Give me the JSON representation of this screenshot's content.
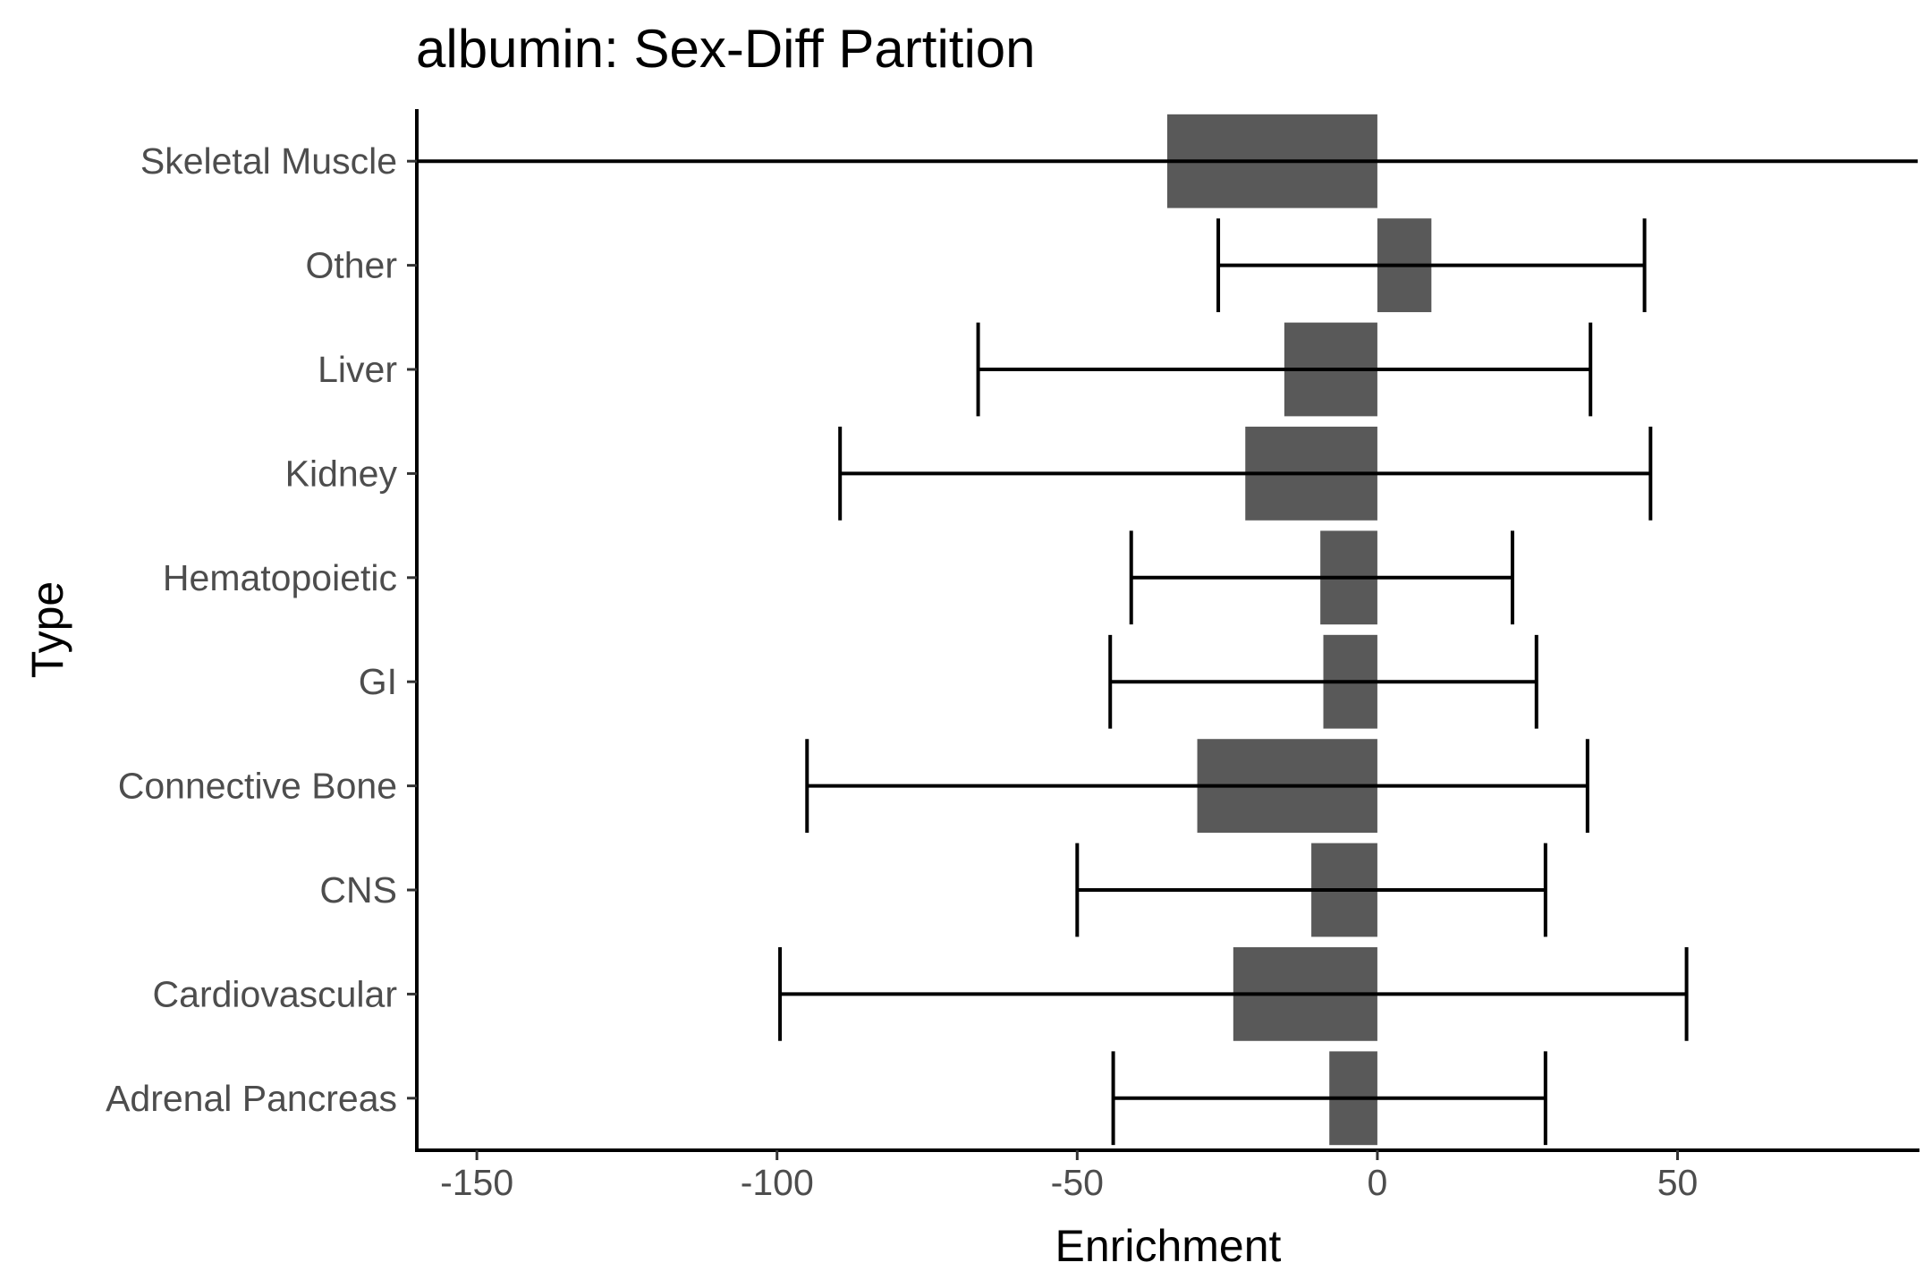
{
  "chart_data": {
    "type": "bar",
    "orientation": "horizontal",
    "title": "albumin: Sex-Diff Partition",
    "xlabel": "Enrichment",
    "ylabel": "Type",
    "xlim": [
      -160,
      90
    ],
    "x_ticks": [
      -150,
      -100,
      -50,
      0,
      50
    ],
    "x_tick_labels": [
      "-150",
      "-100",
      "-50",
      "0",
      "50"
    ],
    "grid": false,
    "legend": "none",
    "bar_color": "#595959",
    "errorbar_color": "#000000",
    "categories": [
      "Skeletal Muscle",
      "Other",
      "Liver",
      "Kidney",
      "Hematopoietic",
      "GI",
      "Connective Bone",
      "CNS",
      "Cardiovascular",
      "Adrenal Pancreas"
    ],
    "values": [
      -35,
      9,
      -15.5,
      -22,
      -9.5,
      -9,
      -30,
      -11,
      -24,
      -8
    ],
    "error_low": [
      -160,
      -26.5,
      -66.5,
      -89.5,
      -41,
      -44.5,
      -95,
      -50,
      -99.5,
      -44
    ],
    "error_high": [
      91,
      44.5,
      35.5,
      45.5,
      22.5,
      26.5,
      35,
      28,
      51.5,
      28
    ]
  }
}
